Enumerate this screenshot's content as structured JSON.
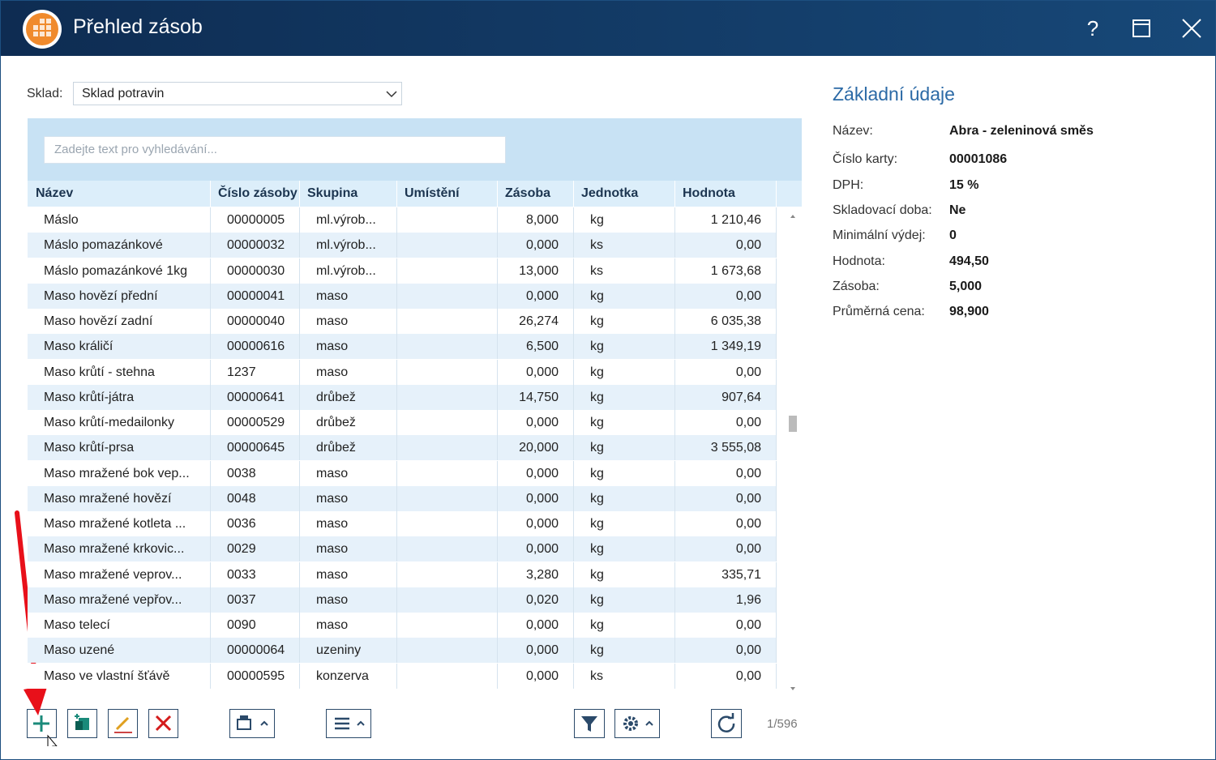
{
  "window": {
    "title": "Přehled zásob"
  },
  "filter": {
    "label": "Sklad:",
    "value": "Sklad potravin"
  },
  "search": {
    "placeholder": "Zadejte text pro vyhledávání..."
  },
  "table": {
    "columns": [
      "Název",
      "Číslo zásoby",
      "Skupina",
      "Umístění",
      "Zásoba",
      "Jednotka",
      "Hodnota"
    ],
    "rows": [
      [
        "Máslo",
        "00000005",
        "ml.výrob...",
        "",
        "8,000",
        "kg",
        "1 210,46"
      ],
      [
        "Máslo pomazánkové",
        "00000032",
        "ml.výrob...",
        "",
        "0,000",
        "ks",
        "0,00"
      ],
      [
        "Máslo pomazánkové 1kg",
        "00000030",
        "ml.výrob...",
        "",
        "13,000",
        "ks",
        "1 673,68"
      ],
      [
        "Maso hovězí přední",
        "00000041",
        "maso",
        "",
        "0,000",
        "kg",
        "0,00"
      ],
      [
        "Maso hovězí zadní",
        "00000040",
        "maso",
        "",
        "26,274",
        "kg",
        "6 035,38"
      ],
      [
        "Maso králičí",
        "00000616",
        "maso",
        "",
        "6,500",
        "kg",
        "1 349,19"
      ],
      [
        "Maso krůtí - stehna",
        "1237",
        "maso",
        "",
        "0,000",
        "kg",
        "0,00"
      ],
      [
        "Maso krůtí-játra",
        "00000641",
        "drůbež",
        "",
        "14,750",
        "kg",
        "907,64"
      ],
      [
        "Maso krůtí-medailonky",
        "00000529",
        "drůbež",
        "",
        "0,000",
        "kg",
        "0,00"
      ],
      [
        "Maso krůtí-prsa",
        "00000645",
        "drůbež",
        "",
        "20,000",
        "kg",
        "3 555,08"
      ],
      [
        "Maso mražené bok vep...",
        "0038",
        "maso",
        "",
        "0,000",
        "kg",
        "0,00"
      ],
      [
        "Maso mražené hovězí",
        "0048",
        "maso",
        "",
        "0,000",
        "kg",
        "0,00"
      ],
      [
        "Maso mražené kotleta ...",
        "0036",
        "maso",
        "",
        "0,000",
        "kg",
        "0,00"
      ],
      [
        "Maso mražené krkovic...",
        "0029",
        "maso",
        "",
        "0,000",
        "kg",
        "0,00"
      ],
      [
        "Maso mražené veprov...",
        "0033",
        "maso",
        "",
        "3,280",
        "kg",
        "335,71"
      ],
      [
        "Maso mražené vepřov...",
        "0037",
        "maso",
        "",
        "0,020",
        "kg",
        "1,96"
      ],
      [
        "Maso telecí",
        "0090",
        "maso",
        "",
        "0,000",
        "kg",
        "0,00"
      ],
      [
        "Maso uzené",
        "00000064",
        "uzeniny",
        "",
        "0,000",
        "kg",
        "0,00"
      ],
      [
        "Maso ve vlastní šťávě",
        "00000595",
        "konzerva",
        "",
        "0,000",
        "ks",
        "0,00"
      ]
    ]
  },
  "details": {
    "title": "Základní údaje",
    "fields": [
      {
        "label": "Název:",
        "value": "Abra - zeleninová směs"
      },
      {
        "label": "Číslo karty:",
        "value": "00001086"
      },
      {
        "label": "DPH:",
        "value": "15 %"
      },
      {
        "label": "Skladovací doba:",
        "value": "Ne"
      },
      {
        "label": "Minimální výdej:",
        "value": "0"
      },
      {
        "label": "Hodnota:",
        "value": "494,50"
      },
      {
        "label": "Zásoba:",
        "value": "5,000"
      },
      {
        "label": "Průměrná cena:",
        "value": "98,900"
      }
    ]
  },
  "footer": {
    "counter": "1/596"
  }
}
